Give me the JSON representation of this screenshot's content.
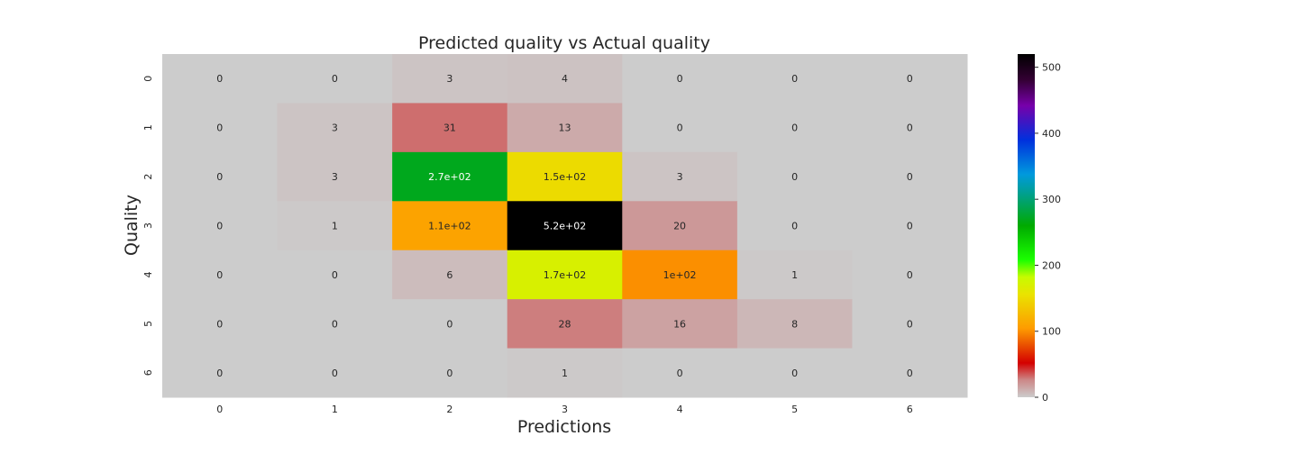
{
  "chart_data": {
    "type": "heatmap",
    "title": "Predicted quality vs Actual quality",
    "xlabel": "Predictions",
    "ylabel": "Quality",
    "x_categories": [
      "0",
      "1",
      "2",
      "3",
      "4",
      "5",
      "6"
    ],
    "y_categories": [
      "0",
      "1",
      "2",
      "3",
      "4",
      "5",
      "6"
    ],
    "values": [
      [
        0,
        0,
        3,
        4,
        0,
        0,
        0
      ],
      [
        0,
        3,
        31,
        13,
        0,
        0,
        0
      ],
      [
        0,
        3,
        270,
        150,
        3,
        0,
        0
      ],
      [
        0,
        1,
        110,
        520,
        20,
        0,
        0
      ],
      [
        0,
        0,
        6,
        170,
        100,
        1,
        0
      ],
      [
        0,
        0,
        0,
        28,
        16,
        8,
        0
      ],
      [
        0,
        0,
        0,
        1,
        0,
        0,
        0
      ]
    ],
    "annotations": [
      [
        "0",
        "0",
        "3",
        "4",
        "0",
        "0",
        "0"
      ],
      [
        "0",
        "3",
        "31",
        "13",
        "0",
        "0",
        "0"
      ],
      [
        "0",
        "3",
        "2.7e+02",
        "1.5e+02",
        "3",
        "0",
        "0"
      ],
      [
        "0",
        "1",
        "1.1e+02",
        "5.2e+02",
        "20",
        "0",
        "0"
      ],
      [
        "0",
        "0",
        "6",
        "1.7e+02",
        "1e+02",
        "1",
        "0"
      ],
      [
        "0",
        "0",
        "0",
        "28",
        "16",
        "8",
        "0"
      ],
      [
        "0",
        "0",
        "0",
        "1",
        "0",
        "0",
        "0"
      ]
    ],
    "colorbar": {
      "range": [
        0,
        520
      ],
      "ticks": [
        0,
        100,
        200,
        300,
        400,
        500
      ],
      "colormap": "nipy_spectral_r"
    },
    "grid": false
  }
}
